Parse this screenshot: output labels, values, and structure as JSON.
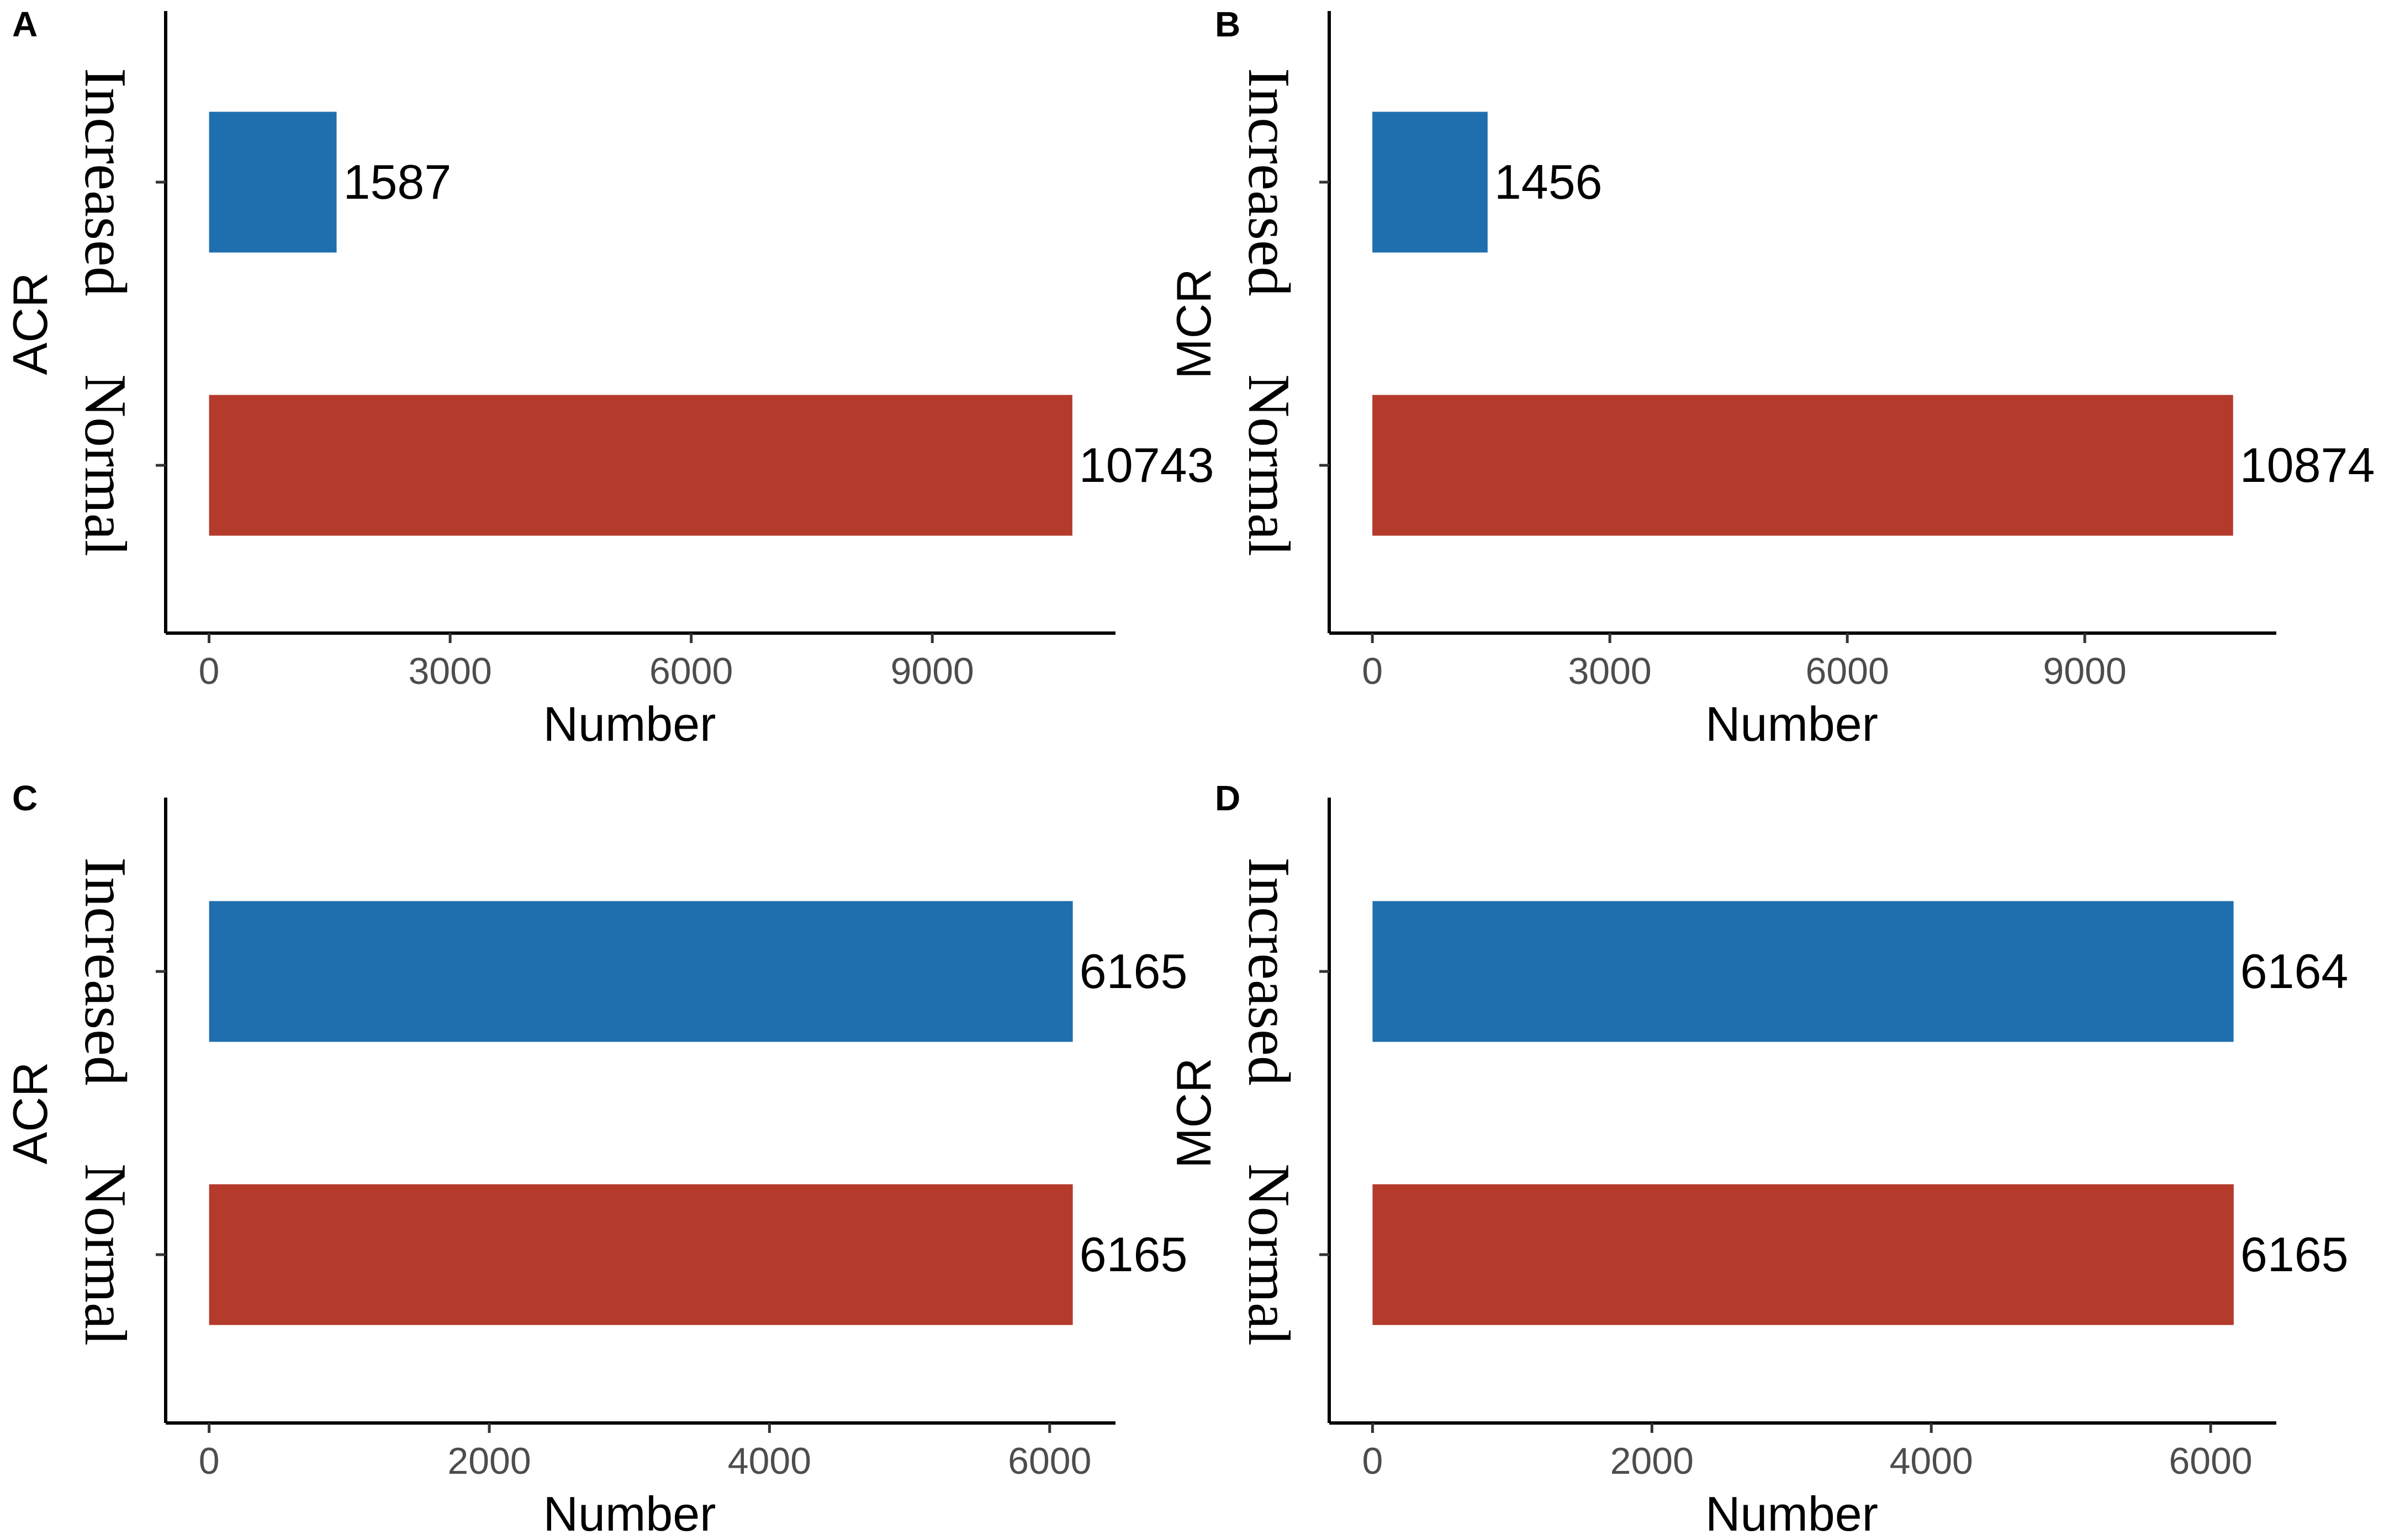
{
  "colors": {
    "increased": "#1f6faf",
    "normal": "#b43a2c"
  },
  "chart_data": [
    {
      "type": "bar",
      "orientation": "horizontal",
      "panel": "A",
      "xlabel": "Number",
      "ylabel": "ACR",
      "categories": [
        "Increased",
        "Normal"
      ],
      "values": [
        1587,
        10743
      ],
      "value_labels": [
        "1587",
        "10743"
      ],
      "xlim": [
        -540,
        11280
      ],
      "xticks": [
        0,
        3000,
        6000,
        9000
      ],
      "xtick_labels": [
        "0",
        "3000",
        "6000",
        "9000"
      ],
      "grid": false
    },
    {
      "type": "bar",
      "orientation": "horizontal",
      "panel": "B",
      "xlabel": "Number",
      "ylabel": "MCR",
      "categories": [
        "Increased",
        "Normal"
      ],
      "values": [
        1456,
        10874
      ],
      "value_labels": [
        "1456",
        "10874"
      ],
      "xlim": [
        -545,
        11420
      ],
      "xticks": [
        0,
        3000,
        6000,
        9000
      ],
      "xtick_labels": [
        "0",
        "3000",
        "6000",
        "9000"
      ],
      "grid": false
    },
    {
      "type": "bar",
      "orientation": "horizontal",
      "panel": "C",
      "xlabel": "Number",
      "ylabel": "ACR",
      "categories": [
        "Increased",
        "Normal"
      ],
      "values": [
        6165,
        6165
      ],
      "value_labels": [
        "6165",
        "6165"
      ],
      "xlim": [
        -310,
        6470
      ],
      "xticks": [
        0,
        2000,
        4000,
        6000
      ],
      "xtick_labels": [
        "0",
        "2000",
        "4000",
        "6000"
      ],
      "grid": false
    },
    {
      "type": "bar",
      "orientation": "horizontal",
      "panel": "D",
      "xlabel": "Number",
      "ylabel": "MCR",
      "categories": [
        "Increased",
        "Normal"
      ],
      "values": [
        6164,
        6165
      ],
      "value_labels": [
        "6164",
        "6165"
      ],
      "xlim": [
        -310,
        6470
      ],
      "xticks": [
        0,
        2000,
        4000,
        6000
      ],
      "xtick_labels": [
        "0",
        "2000",
        "4000",
        "6000"
      ],
      "grid": false
    }
  ]
}
